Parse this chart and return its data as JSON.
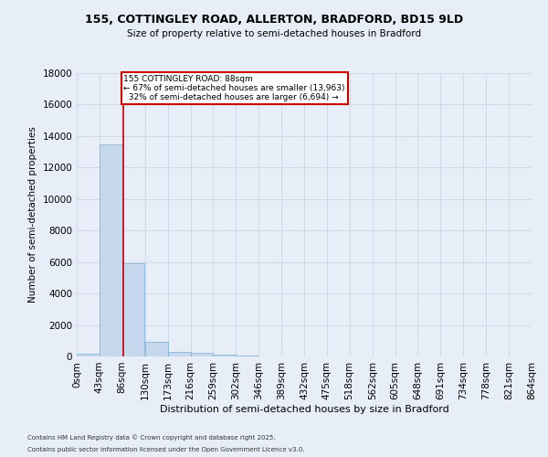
{
  "title": "155, COTTINGLEY ROAD, ALLERTON, BRADFORD, BD15 9LD",
  "subtitle": "Size of property relative to semi-detached houses in Bradford",
  "xlabel": "Distribution of semi-detached houses by size in Bradford",
  "ylabel": "Number of semi-detached properties",
  "property_size": 88,
  "pct_smaller": 67,
  "pct_larger": 32,
  "n_smaller": 13963,
  "n_larger": 6694,
  "bin_edges": [
    0,
    43,
    86,
    130,
    173,
    216,
    259,
    302,
    346,
    389,
    432,
    475,
    518,
    562,
    605,
    648,
    691,
    734,
    778,
    821,
    864
  ],
  "bin_labels": [
    "0sqm",
    "43sqm",
    "86sqm",
    "130sqm",
    "173sqm",
    "216sqm",
    "259sqm",
    "302sqm",
    "346sqm",
    "389sqm",
    "432sqm",
    "475sqm",
    "518sqm",
    "562sqm",
    "605sqm",
    "648sqm",
    "691sqm",
    "734sqm",
    "778sqm",
    "821sqm",
    "864sqm"
  ],
  "bar_heights": [
    200,
    13500,
    5900,
    950,
    300,
    250,
    100,
    30,
    10,
    5,
    3,
    2,
    1,
    1,
    0,
    0,
    0,
    0,
    0,
    0
  ],
  "bar_color": "#c5d8ed",
  "bar_edge_color": "#7aafd4",
  "vline_color": "#cc0000",
  "annotation_box_color": "#cc0000",
  "ylim": [
    0,
    18000
  ],
  "yticks": [
    0,
    2000,
    4000,
    6000,
    8000,
    10000,
    12000,
    14000,
    16000,
    18000
  ],
  "grid_color": "#d0d8e8",
  "bg_color": "#e8eef8",
  "footnote1": "Contains HM Land Registry data © Crown copyright and database right 2025.",
  "footnote2": "Contains public sector information licensed under the Open Government Licence v3.0."
}
